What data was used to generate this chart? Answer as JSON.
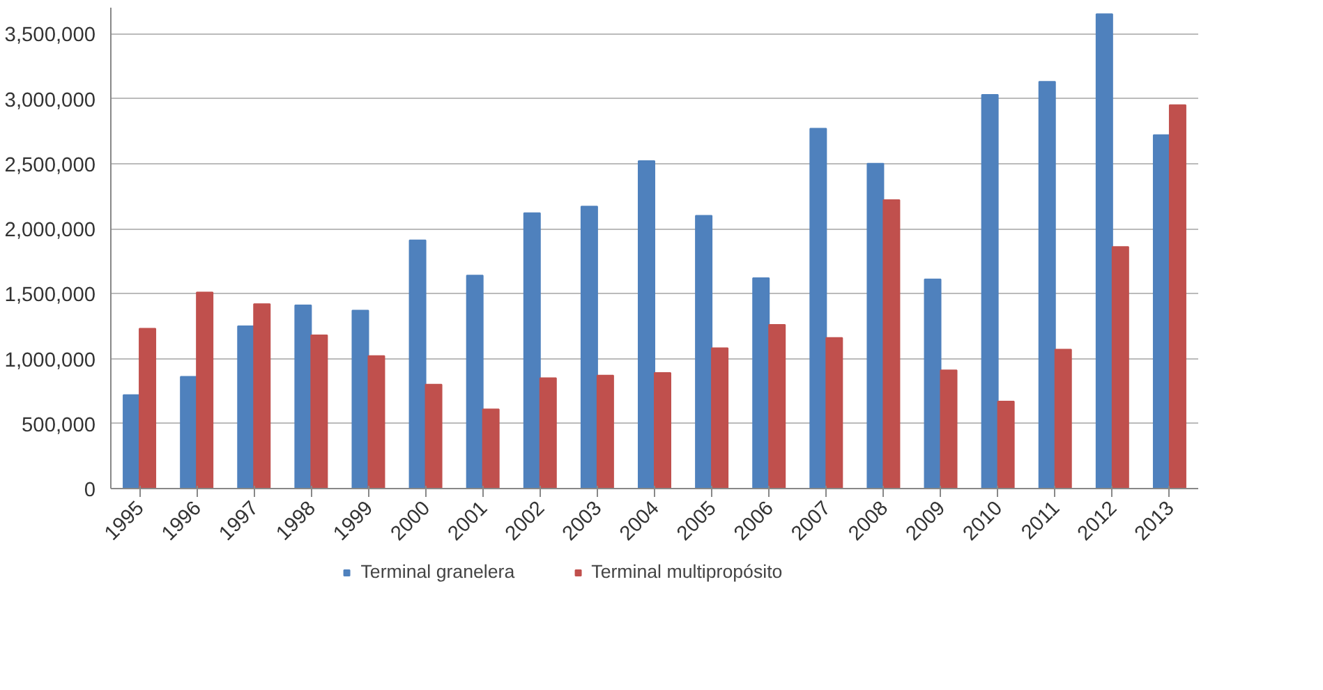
{
  "chart_data": {
    "type": "bar",
    "categories": [
      "1995",
      "1996",
      "1997",
      "1998",
      "1999",
      "2000",
      "2001",
      "2002",
      "2003",
      "2004",
      "2005",
      "2006",
      "2007",
      "2008",
      "2009",
      "2010",
      "2011",
      "2012",
      "2013"
    ],
    "series": [
      {
        "name": "Terminal granelera",
        "color": "#4f81bd",
        "values": [
          720000,
          860000,
          1250000,
          1410000,
          1370000,
          1910000,
          1640000,
          2120000,
          2170000,
          2520000,
          2100000,
          1620000,
          2770000,
          2500000,
          1610000,
          3030000,
          3130000,
          3650000,
          2720000
        ]
      },
      {
        "name": "Terminal multipropósito",
        "color": "#c0504d",
        "values": [
          1230000,
          1510000,
          1420000,
          1180000,
          1020000,
          800000,
          610000,
          850000,
          870000,
          890000,
          1080000,
          1260000,
          1160000,
          2220000,
          910000,
          670000,
          1070000,
          1860000,
          2950000
        ]
      }
    ],
    "ylim": [
      0,
      3700000
    ],
    "yticks": [
      {
        "value": 0,
        "label": "0"
      },
      {
        "value": 500000,
        "label": "500,000"
      },
      {
        "value": 1000000,
        "label": "1,000,000"
      },
      {
        "value": 1500000,
        "label": "1,500,000"
      },
      {
        "value": 2000000,
        "label": "2,000,000"
      },
      {
        "value": 2500000,
        "label": "2,500,000"
      },
      {
        "value": 3000000,
        "label": "3,000,000"
      },
      {
        "value": 3500000,
        "label": "3,500,000"
      }
    ],
    "grid": "y",
    "legend": "bottom"
  }
}
